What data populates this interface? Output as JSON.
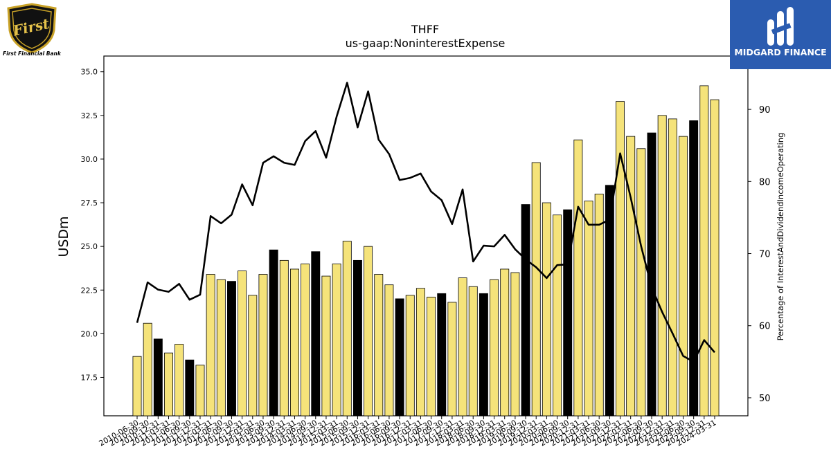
{
  "logos": {
    "left": {
      "name": "First Financial Bank",
      "emblem_text": "First"
    },
    "right": {
      "name": "MIDGARD FINANCE"
    }
  },
  "colors": {
    "bar_fill": "#f5e37a",
    "bar_highlight": "#000000",
    "line": "#000000",
    "right_logo_bg": "#2b5cb0"
  },
  "chart_data": {
    "type": "bar",
    "title": "THFF",
    "subtitle": "us-gaap:NoninterestExpense",
    "ylabel": "USDm",
    "y2label": "Percentage of InterestAndDividendIncomeOperating",
    "ylim": [
      15.3,
      35.9
    ],
    "y2lim": [
      47.5,
      97.4
    ],
    "yticks": [
      "17.5",
      "20.0",
      "22.5",
      "25.0",
      "27.5",
      "30.0",
      "32.5",
      "35.0"
    ],
    "y2ticks": [
      "50",
      "60",
      "70",
      "80",
      "90"
    ],
    "categories": [
      "2010-06-30",
      "2010-09-30",
      "2010-12-31",
      "2011-03-31",
      "2011-06-30",
      "2011-09-30",
      "2011-12-31",
      "2012-03-31",
      "2012-06-30",
      "2012-09-30",
      "2012-12-31",
      "2013-03-31",
      "2013-06-30",
      "2013-09-30",
      "2013-12-31",
      "2014-03-31",
      "2014-06-30",
      "2014-09-30",
      "2014-12-31",
      "2015-03-31",
      "2015-06-30",
      "2015-09-30",
      "2015-12-31",
      "2016-03-31",
      "2016-06-30",
      "2016-09-30",
      "2016-12-31",
      "2017-03-31",
      "2017-06-30",
      "2017-09-30",
      "2017-12-31",
      "2018-03-31",
      "2018-06-30",
      "2018-09-30",
      "2018-12-31",
      "2019-03-31",
      "2019-06-30",
      "2019-09-30",
      "2019-12-31",
      "2020-03-31",
      "2020-06-30",
      "2020-09-30",
      "2020-12-31",
      "2021-03-31",
      "2021-06-30",
      "2021-09-30",
      "2021-12-31",
      "2022-03-31",
      "2022-06-30",
      "2022-09-30",
      "2022-12-31",
      "2023-03-31",
      "2023-06-30",
      "2023-09-30",
      "2023-12-31",
      "2024-03-31"
    ],
    "series": [
      {
        "type": "bar",
        "values": [
          18.7,
          20.6,
          19.7,
          18.9,
          19.4,
          18.5,
          18.2,
          23.4,
          23.1,
          23.0,
          23.6,
          22.2,
          23.4,
          24.8,
          24.2,
          23.7,
          24.0,
          24.7,
          23.3,
          24.0,
          25.3,
          24.2,
          25.0,
          23.4,
          22.8,
          22.0,
          22.2,
          22.6,
          22.1,
          22.3,
          21.8,
          23.2,
          22.7,
          22.3,
          23.1,
          23.7,
          23.5,
          27.4,
          29.8,
          27.5,
          26.8,
          27.1,
          31.1,
          27.6,
          28.0,
          28.5,
          33.3,
          31.3,
          30.6,
          31.5,
          32.5,
          32.3,
          31.3,
          32.2,
          34.2,
          33.4
        ],
        "highlight": [
          false,
          false,
          true,
          false,
          false,
          true,
          false,
          false,
          false,
          true,
          false,
          false,
          false,
          true,
          false,
          false,
          false,
          true,
          false,
          false,
          false,
          true,
          false,
          false,
          false,
          true,
          false,
          false,
          false,
          true,
          false,
          false,
          false,
          true,
          false,
          false,
          false,
          true,
          false,
          false,
          false,
          true,
          false,
          false,
          false,
          true,
          false,
          false,
          false,
          true,
          false,
          false,
          false,
          true,
          false,
          false
        ]
      },
      {
        "type": "line",
        "axis": "right",
        "values": [
          60.4,
          66.0,
          65.0,
          64.7,
          65.8,
          63.6,
          64.3,
          75.2,
          74.2,
          75.4,
          79.6,
          76.7,
          82.6,
          83.5,
          82.6,
          82.3,
          85.6,
          87.0,
          83.3,
          89.0,
          93.7,
          87.5,
          92.5,
          85.8,
          83.8,
          80.2,
          80.5,
          81.1,
          78.6,
          77.4,
          74.1,
          78.9,
          68.9,
          71.1,
          71.0,
          72.6,
          70.6,
          69.2,
          68.1,
          66.6,
          68.4,
          68.5,
          76.5,
          74.0,
          74.0,
          74.7,
          83.9,
          77.8,
          71.0,
          65.3,
          61.9,
          58.9,
          55.8,
          55.0,
          58.0,
          56.3
        ]
      }
    ]
  }
}
